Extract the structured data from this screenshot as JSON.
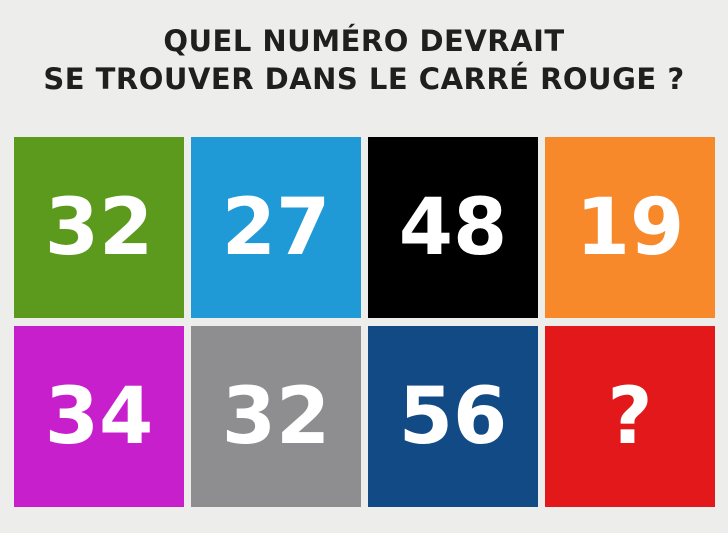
{
  "header": {
    "title_lines": [
      "QUEL NUMÉRO DEVRAIT",
      "SE TROUVER DANS LE CARRÉ ROUGE ?"
    ]
  },
  "grid": {
    "rows": [
      [
        "32",
        "27",
        "48",
        "19"
      ],
      [
        "34",
        "32",
        "56",
        "?"
      ]
    ]
  }
}
